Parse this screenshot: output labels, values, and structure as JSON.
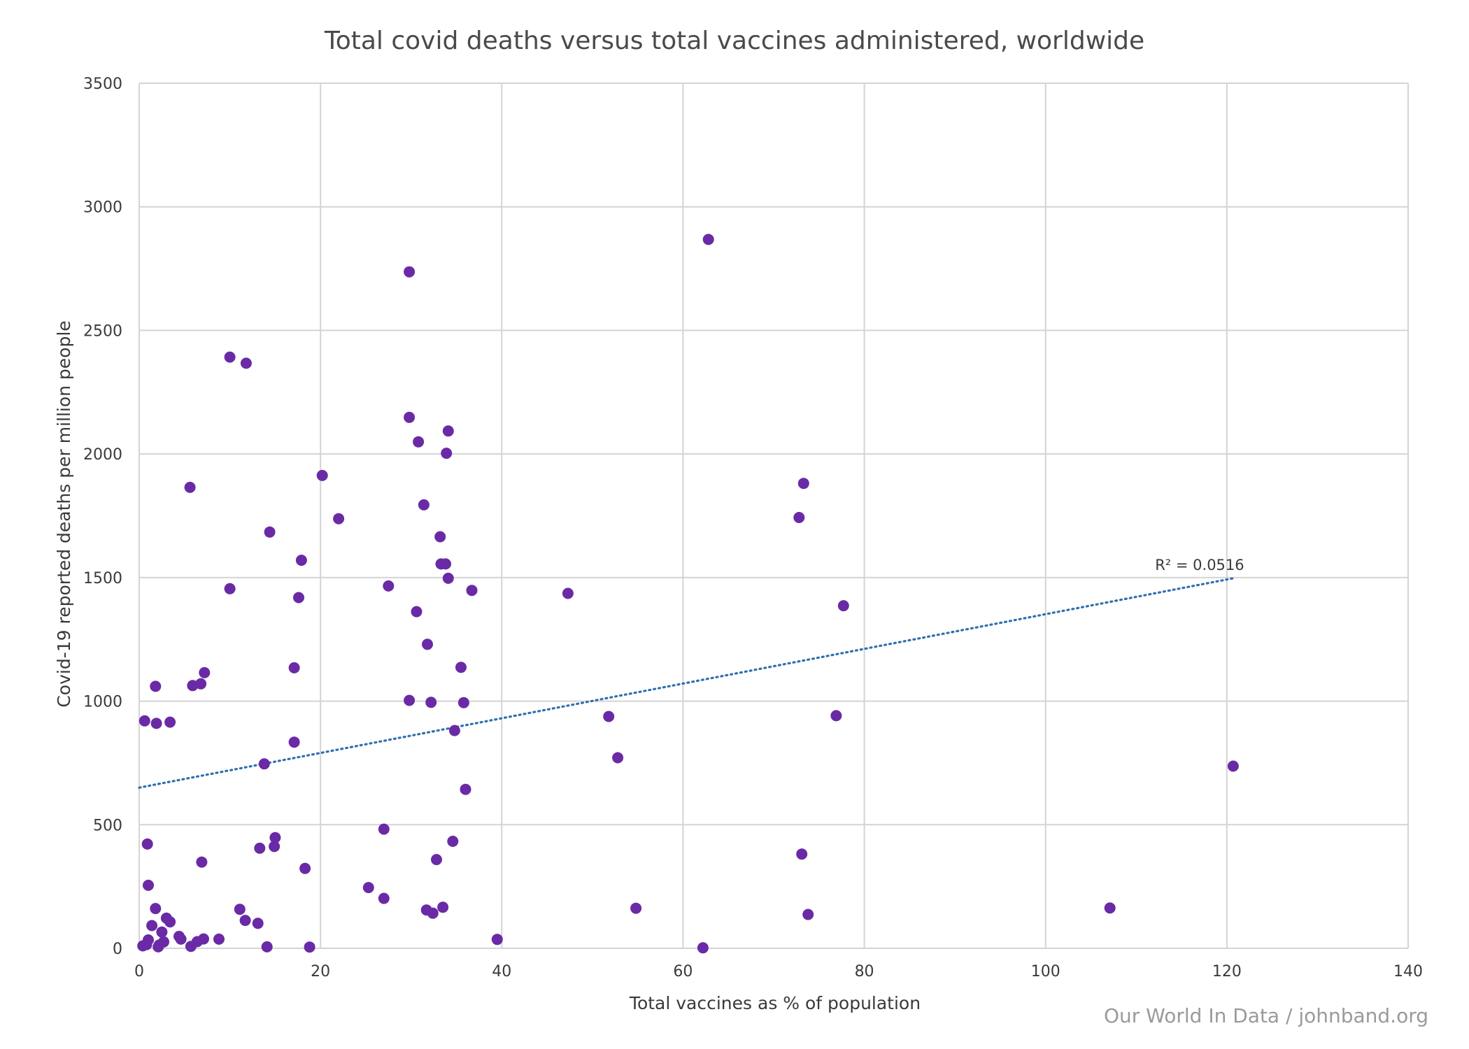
{
  "chart_data": {
    "type": "scatter",
    "title": "Total covid deaths versus total vaccines administered, worldwide",
    "xlabel": "Total vaccines as % of population",
    "ylabel": "Covid-19 reported deaths per million people",
    "xlim": [
      0,
      140
    ],
    "ylim": [
      0,
      3500
    ],
    "xticks": [
      0,
      20,
      40,
      60,
      80,
      100,
      120,
      140
    ],
    "yticks": [
      0,
      500,
      1000,
      1500,
      2000,
      2500,
      3000,
      3500
    ],
    "grid": true,
    "point_color": "#6a2aa6",
    "trendline": {
      "type": "linear",
      "color": "#2e6fae",
      "style": "dotted",
      "x_start": 0,
      "x_end": 120.7,
      "y_start": 650,
      "y_end": 1497,
      "label": "R² = 0.0516"
    },
    "points": [
      [
        62.8,
        2868
      ],
      [
        29.8,
        2737
      ],
      [
        10.0,
        2392
      ],
      [
        11.8,
        2367
      ],
      [
        29.8,
        2148
      ],
      [
        34.1,
        2093
      ],
      [
        30.8,
        2049
      ],
      [
        33.9,
        2003
      ],
      [
        20.2,
        1913
      ],
      [
        5.6,
        1865
      ],
      [
        73.3,
        1881
      ],
      [
        31.4,
        1794
      ],
      [
        22.0,
        1738
      ],
      [
        72.8,
        1743
      ],
      [
        14.4,
        1684
      ],
      [
        33.2,
        1665
      ],
      [
        17.9,
        1570
      ],
      [
        33.3,
        1555
      ],
      [
        33.8,
        1555
      ],
      [
        34.1,
        1497
      ],
      [
        27.5,
        1466
      ],
      [
        10.0,
        1455
      ],
      [
        36.7,
        1448
      ],
      [
        47.3,
        1436
      ],
      [
        17.6,
        1419
      ],
      [
        77.7,
        1386
      ],
      [
        30.6,
        1362
      ],
      [
        31.8,
        1230
      ],
      [
        17.1,
        1135
      ],
      [
        35.5,
        1137
      ],
      [
        7.2,
        1115
      ],
      [
        1.8,
        1060
      ],
      [
        5.9,
        1063
      ],
      [
        6.8,
        1070
      ],
      [
        29.8,
        1003
      ],
      [
        32.2,
        995
      ],
      [
        35.8,
        994
      ],
      [
        51.8,
        938
      ],
      [
        76.9,
        941
      ],
      [
        0.6,
        920
      ],
      [
        1.9,
        910
      ],
      [
        3.4,
        915
      ],
      [
        34.8,
        881
      ],
      [
        17.1,
        834
      ],
      [
        52.8,
        771
      ],
      [
        13.8,
        746
      ],
      [
        120.7,
        737
      ],
      [
        36.0,
        643
      ],
      [
        27.0,
        482
      ],
      [
        15.0,
        448
      ],
      [
        34.6,
        433
      ],
      [
        0.9,
        422
      ],
      [
        14.9,
        412
      ],
      [
        13.3,
        405
      ],
      [
        73.1,
        381
      ],
      [
        32.8,
        359
      ],
      [
        6.9,
        349
      ],
      [
        18.3,
        323
      ],
      [
        1.0,
        255
      ],
      [
        25.3,
        246
      ],
      [
        27.0,
        202
      ],
      [
        1.8,
        161
      ],
      [
        11.1,
        158
      ],
      [
        31.7,
        155
      ],
      [
        54.8,
        162
      ],
      [
        33.5,
        166
      ],
      [
        107.1,
        163
      ],
      [
        32.4,
        142
      ],
      [
        73.8,
        137
      ],
      [
        3.0,
        122
      ],
      [
        11.7,
        113
      ],
      [
        3.4,
        107
      ],
      [
        13.1,
        101
      ],
      [
        1.4,
        92
      ],
      [
        2.5,
        66
      ],
      [
        4.4,
        48
      ],
      [
        4.6,
        37
      ],
      [
        7.1,
        38
      ],
      [
        8.8,
        37
      ],
      [
        39.5,
        36
      ],
      [
        1.0,
        34
      ],
      [
        0.8,
        15
      ],
      [
        6.4,
        27
      ],
      [
        2.7,
        26
      ],
      [
        2.2,
        13
      ],
      [
        0.4,
        10
      ],
      [
        2.1,
        6
      ],
      [
        5.7,
        8
      ],
      [
        14.1,
        6
      ],
      [
        18.8,
        5
      ],
      [
        62.2,
        2
      ]
    ]
  },
  "credit": "Our World In Data / johnband.org"
}
